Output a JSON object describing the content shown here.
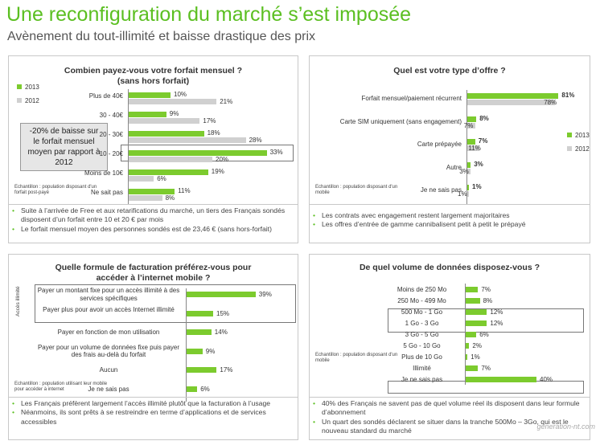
{
  "header": {
    "title": "Une reconfiguration du marché s’est imposée",
    "subtitle": "Avènement du tout-illimité et baisse drastique des prix"
  },
  "panels": {
    "p1": {
      "title": "Combien payez-vous votre forfait mensuel ? (sans hors forfait)",
      "callout": "-20% de baisse sur le forfait mensuel moyen par rapport à 2012",
      "sample": "Echantillon : population disposant d'un forfait post-payé",
      "notes": [
        "Suite à l’arrivée de Free et aux retarifications du marché, un tiers des Français sondés disposent d’un forfait entre 10 et 20 € par mois",
        "Le forfait mensuel moyen des personnes sondés est de 23,46 € (sans hors-forfait)"
      ]
    },
    "p2": {
      "title": "Quel est votre  type d’offre ?",
      "sample": "Echantillon : population disposant d'un mobile",
      "notes": [
        "Les contrats avec engagement restent largement majoritaires",
        "Les offres d’entrée de gamme cannibalisent petit à petit le prépayé"
      ]
    },
    "p3": {
      "title": "Quelle formule de facturation préférez-vous pour accéder à l’internet mobile ?",
      "vertical_label": "Accès illimité",
      "sample": "Echantillon : population utilisant leur mobile pour accéder à internet",
      "notes": [
        "Les Français préfèrent largement l’accès illimité plutôt que la facturation à l’usage",
        "Néanmoins, ils sont prêts à se restreindre en terme d’applications et de services accessibles"
      ]
    },
    "p4": {
      "title": "De quel volume de données disposez-vous ?",
      "sample": "Echantillon : population disposant d'un mobile",
      "notes": [
        "40% des Français ne savent pas de quel volume réel ils disposent dans leur formule d’abonnement",
        "Un quart des sondés déclarent se situer dans la tranche 500Mo – 3Go, qui est le nouveau standard du marché"
      ]
    }
  },
  "watermark": "generation-nt.com",
  "colors": {
    "green": "#7ccb2e",
    "grey": "#d0d0d0",
    "title": "#5bbf21"
  },
  "chart_data": [
    {
      "type": "bar",
      "orientation": "horizontal",
      "categories": [
        "Plus de 40€",
        "30 - 40€",
        "20 - 30€",
        "10 - 20€",
        "Moins de 10€",
        "Ne sait pas"
      ],
      "series": [
        {
          "name": "2013",
          "values": [
            10,
            9,
            18,
            33,
            19,
            11
          ]
        },
        {
          "name": "2012",
          "values": [
            21,
            17,
            28,
            20,
            6,
            8
          ]
        }
      ],
      "value_labels": {
        "2013": [
          "10%",
          "9%",
          "18%",
          "33%",
          "19%",
          "11%"
        ],
        "2012": [
          "21%",
          "17%",
          "28%",
          "20%",
          "6%",
          "8%"
        ]
      },
      "legend": "top-left"
    },
    {
      "type": "bar",
      "orientation": "horizontal",
      "categories": [
        "Forfait mensuel/paiement récurrent",
        "Carte SIM uniquement (sans engagement)",
        "Carte prépayée",
        "Autre",
        "Je ne sais pas"
      ],
      "series": [
        {
          "name": "2013",
          "values": [
            81,
            8,
            7,
            3,
            1
          ]
        },
        {
          "name": "2012",
          "values": [
            78,
            7,
            11,
            3,
            1
          ]
        }
      ],
      "value_labels": {
        "2013": [
          "81%",
          "8%",
          "7%",
          "3%",
          "1%"
        ],
        "2012": [
          "78%",
          "7%",
          "11%",
          "3%",
          "1%"
        ]
      },
      "legend": "right"
    },
    {
      "type": "bar",
      "orientation": "horizontal",
      "categories": [
        "Payer un montant fixe pour un accès illimité à des services spécifiques",
        "Payer plus pour avoir un accès Internet illimité",
        "Payer en fonction de mon utilisation",
        "Payer pour un volume de données fixe puis payer des frais au-delà du forfait",
        "Aucun",
        "Je ne sais pas"
      ],
      "series": [
        {
          "values": [
            39,
            15,
            14,
            9,
            17,
            6
          ]
        }
      ],
      "value_labels": [
        "39%",
        "15%",
        "14%",
        "9%",
        "17%",
        "6%"
      ]
    },
    {
      "type": "bar",
      "orientation": "horizontal",
      "categories": [
        "Moins de 250 Mo",
        "250 Mo - 499 Mo",
        "500 Mo - 1 Go",
        "1 Go - 3 Go",
        "3 Go - 5 Go",
        "5 Go - 10 Go",
        "Plus de 10 Go",
        "Illimité",
        "Je ne sais pas"
      ],
      "series": [
        {
          "values": [
            7,
            8,
            12,
            12,
            6,
            2,
            1,
            7,
            40
          ]
        }
      ],
      "value_labels": [
        "7%",
        "8%",
        "12%",
        "12%",
        "6%",
        "2%",
        "1%",
        "7%",
        "40%"
      ]
    }
  ]
}
